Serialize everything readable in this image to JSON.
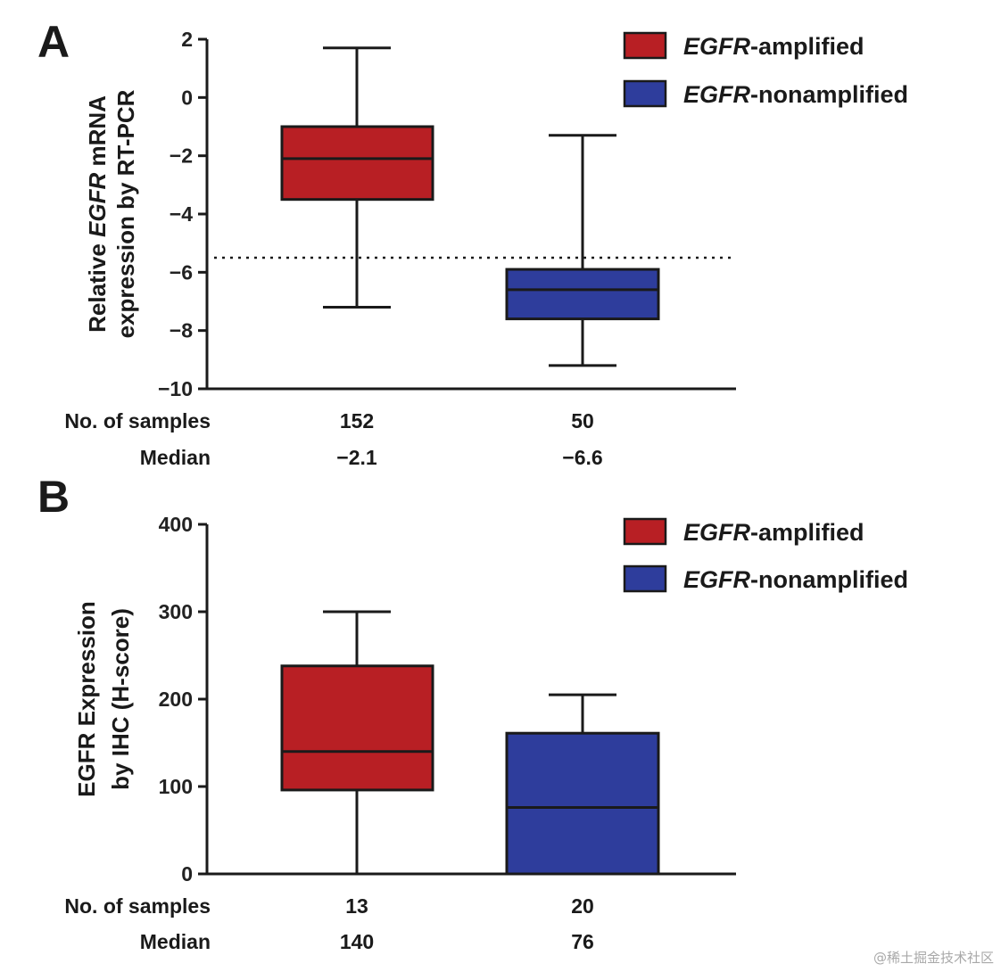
{
  "watermark": "@稀土掘金技术社区",
  "colors": {
    "amplified": "#b81f24",
    "nonamplified": "#2e3d9c"
  },
  "chart_data": [
    {
      "type": "box",
      "panel_label": "A",
      "ylabel_lines": [
        [
          "Relative ",
          "EGFR",
          " mRNA"
        ],
        [
          "expression by RT-PCR"
        ]
      ],
      "ylim": [
        -10,
        2
      ],
      "yticks": [
        2,
        0,
        -2,
        -4,
        -6,
        -8,
        -10
      ],
      "ytick_labels": [
        "2",
        "0",
        "−2",
        "−4",
        "−6",
        "−8",
        "−10"
      ],
      "reference_line": -5.5,
      "legend": [
        "EGFR-amplified",
        "EGFR-nonamplified"
      ],
      "series": [
        {
          "name": "EGFR-amplified",
          "whisker_low": -7.2,
          "q1": -3.5,
          "median": -2.1,
          "q3": -1.0,
          "whisker_high": 1.7
        },
        {
          "name": "EGFR-nonamplified",
          "whisker_low": -9.2,
          "q1": -7.6,
          "median": -6.6,
          "q3": -5.9,
          "whisker_high": -1.3
        }
      ],
      "table": {
        "rows": [
          {
            "label": "No. of samples",
            "values": [
              "152",
              "50"
            ]
          },
          {
            "label": "Median",
            "values": [
              "−2.1",
              "−6.6"
            ]
          }
        ]
      }
    },
    {
      "type": "box",
      "panel_label": "B",
      "ylabel_lines": [
        [
          "EGFR Expression"
        ],
        [
          "by IHC (H-score)"
        ]
      ],
      "ylim": [
        0,
        400
      ],
      "yticks": [
        400,
        300,
        200,
        100,
        0
      ],
      "ytick_labels": [
        "400",
        "300",
        "200",
        "100",
        "0"
      ],
      "legend": [
        "EGFR-amplified",
        "EGFR-nonamplified"
      ],
      "series": [
        {
          "name": "EGFR-amplified",
          "whisker_low": 0,
          "q1": 96,
          "median": 140,
          "q3": 238,
          "whisker_high": 300
        },
        {
          "name": "EGFR-nonamplified",
          "whisker_low": 0,
          "q1": 0,
          "median": 76,
          "q3": 161,
          "whisker_high": 205
        }
      ],
      "table": {
        "rows": [
          {
            "label": "No. of samples",
            "values": [
              "13",
              "20"
            ]
          },
          {
            "label": "Median",
            "values": [
              "140",
              "76"
            ]
          }
        ]
      }
    }
  ]
}
